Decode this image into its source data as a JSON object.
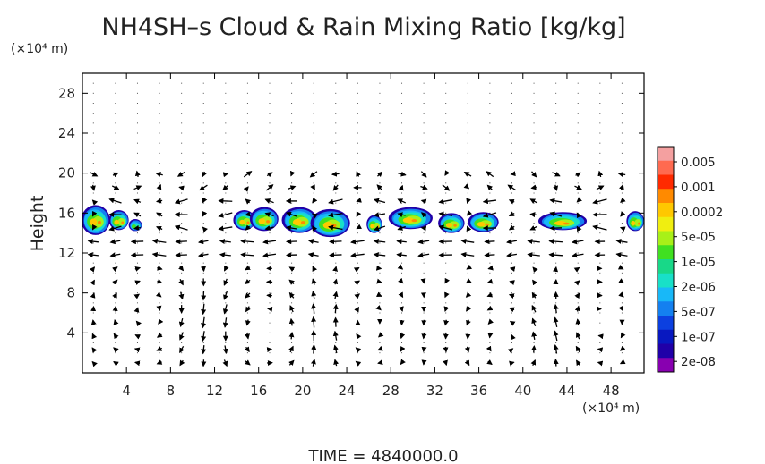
{
  "chart_data": {
    "type": "heatmap",
    "title": "NH4SH–s Cloud & Rain Mixing Ratio [kg/kg]",
    "ylabel": "Height",
    "y_unit": "(×10⁴ m)",
    "x_unit": "(×10⁴ m)",
    "footer": "TIME  =  4840000.0",
    "xlim": [
      0,
      51
    ],
    "ylim": [
      0,
      30
    ],
    "x_ticks": [
      4,
      8,
      12,
      16,
      20,
      24,
      28,
      32,
      36,
      40,
      44,
      48
    ],
    "y_ticks": [
      4,
      8,
      12,
      16,
      20,
      24,
      28
    ],
    "grid": "dotted",
    "overlay": "wind vectors",
    "colorbar": {
      "labels": [
        "0.005",
        "0.001",
        "0.0002",
        "5e-05",
        "1e-05",
        "2e-06",
        "5e-07",
        "1e-07",
        "2e-08"
      ],
      "colors": [
        "#f4a0a0",
        "#ff6a50",
        "#ff2a00",
        "#ff8a00",
        "#ffc800",
        "#f0ee10",
        "#a8f018",
        "#40e020",
        "#18d888",
        "#18e0c8",
        "#18b8f8",
        "#1480f0",
        "#0c40e0",
        "#0818c0",
        "#2000a8",
        "#8800b0"
      ]
    },
    "cloud_blobs": [
      {
        "x": 1.2,
        "y": 15.3,
        "rx": 1.3,
        "ry": 1.5,
        "peak": "0.0002"
      },
      {
        "x": 3.3,
        "y": 15.3,
        "rx": 0.9,
        "ry": 1.0,
        "peak": "1e-05"
      },
      {
        "x": 4.8,
        "y": 14.8,
        "rx": 0.6,
        "ry": 0.6,
        "peak": "5e-07"
      },
      {
        "x": 14.7,
        "y": 15.3,
        "rx": 1.0,
        "ry": 1.0,
        "peak": "1e-05"
      },
      {
        "x": 16.5,
        "y": 15.4,
        "rx": 1.3,
        "ry": 1.2,
        "peak": "5e-05"
      },
      {
        "x": 19.7,
        "y": 15.3,
        "rx": 1.6,
        "ry": 1.3,
        "peak": "5e-05"
      },
      {
        "x": 22.5,
        "y": 15.0,
        "rx": 1.8,
        "ry": 1.4,
        "peak": "0.0002"
      },
      {
        "x": 26.5,
        "y": 14.9,
        "rx": 0.7,
        "ry": 0.9,
        "peak": "1e-05"
      },
      {
        "x": 29.8,
        "y": 15.5,
        "rx": 2.0,
        "ry": 1.1,
        "peak": "5e-05"
      },
      {
        "x": 33.5,
        "y": 15.0,
        "rx": 1.2,
        "ry": 1.0,
        "peak": "1e-05"
      },
      {
        "x": 36.4,
        "y": 15.1,
        "rx": 1.4,
        "ry": 1.0,
        "peak": "5e-05"
      },
      {
        "x": 43.6,
        "y": 15.2,
        "rx": 2.2,
        "ry": 0.9,
        "peak": "5e-05"
      },
      {
        "x": 50.2,
        "y": 15.2,
        "rx": 0.8,
        "ry": 1.0,
        "peak": "1e-05"
      }
    ]
  }
}
